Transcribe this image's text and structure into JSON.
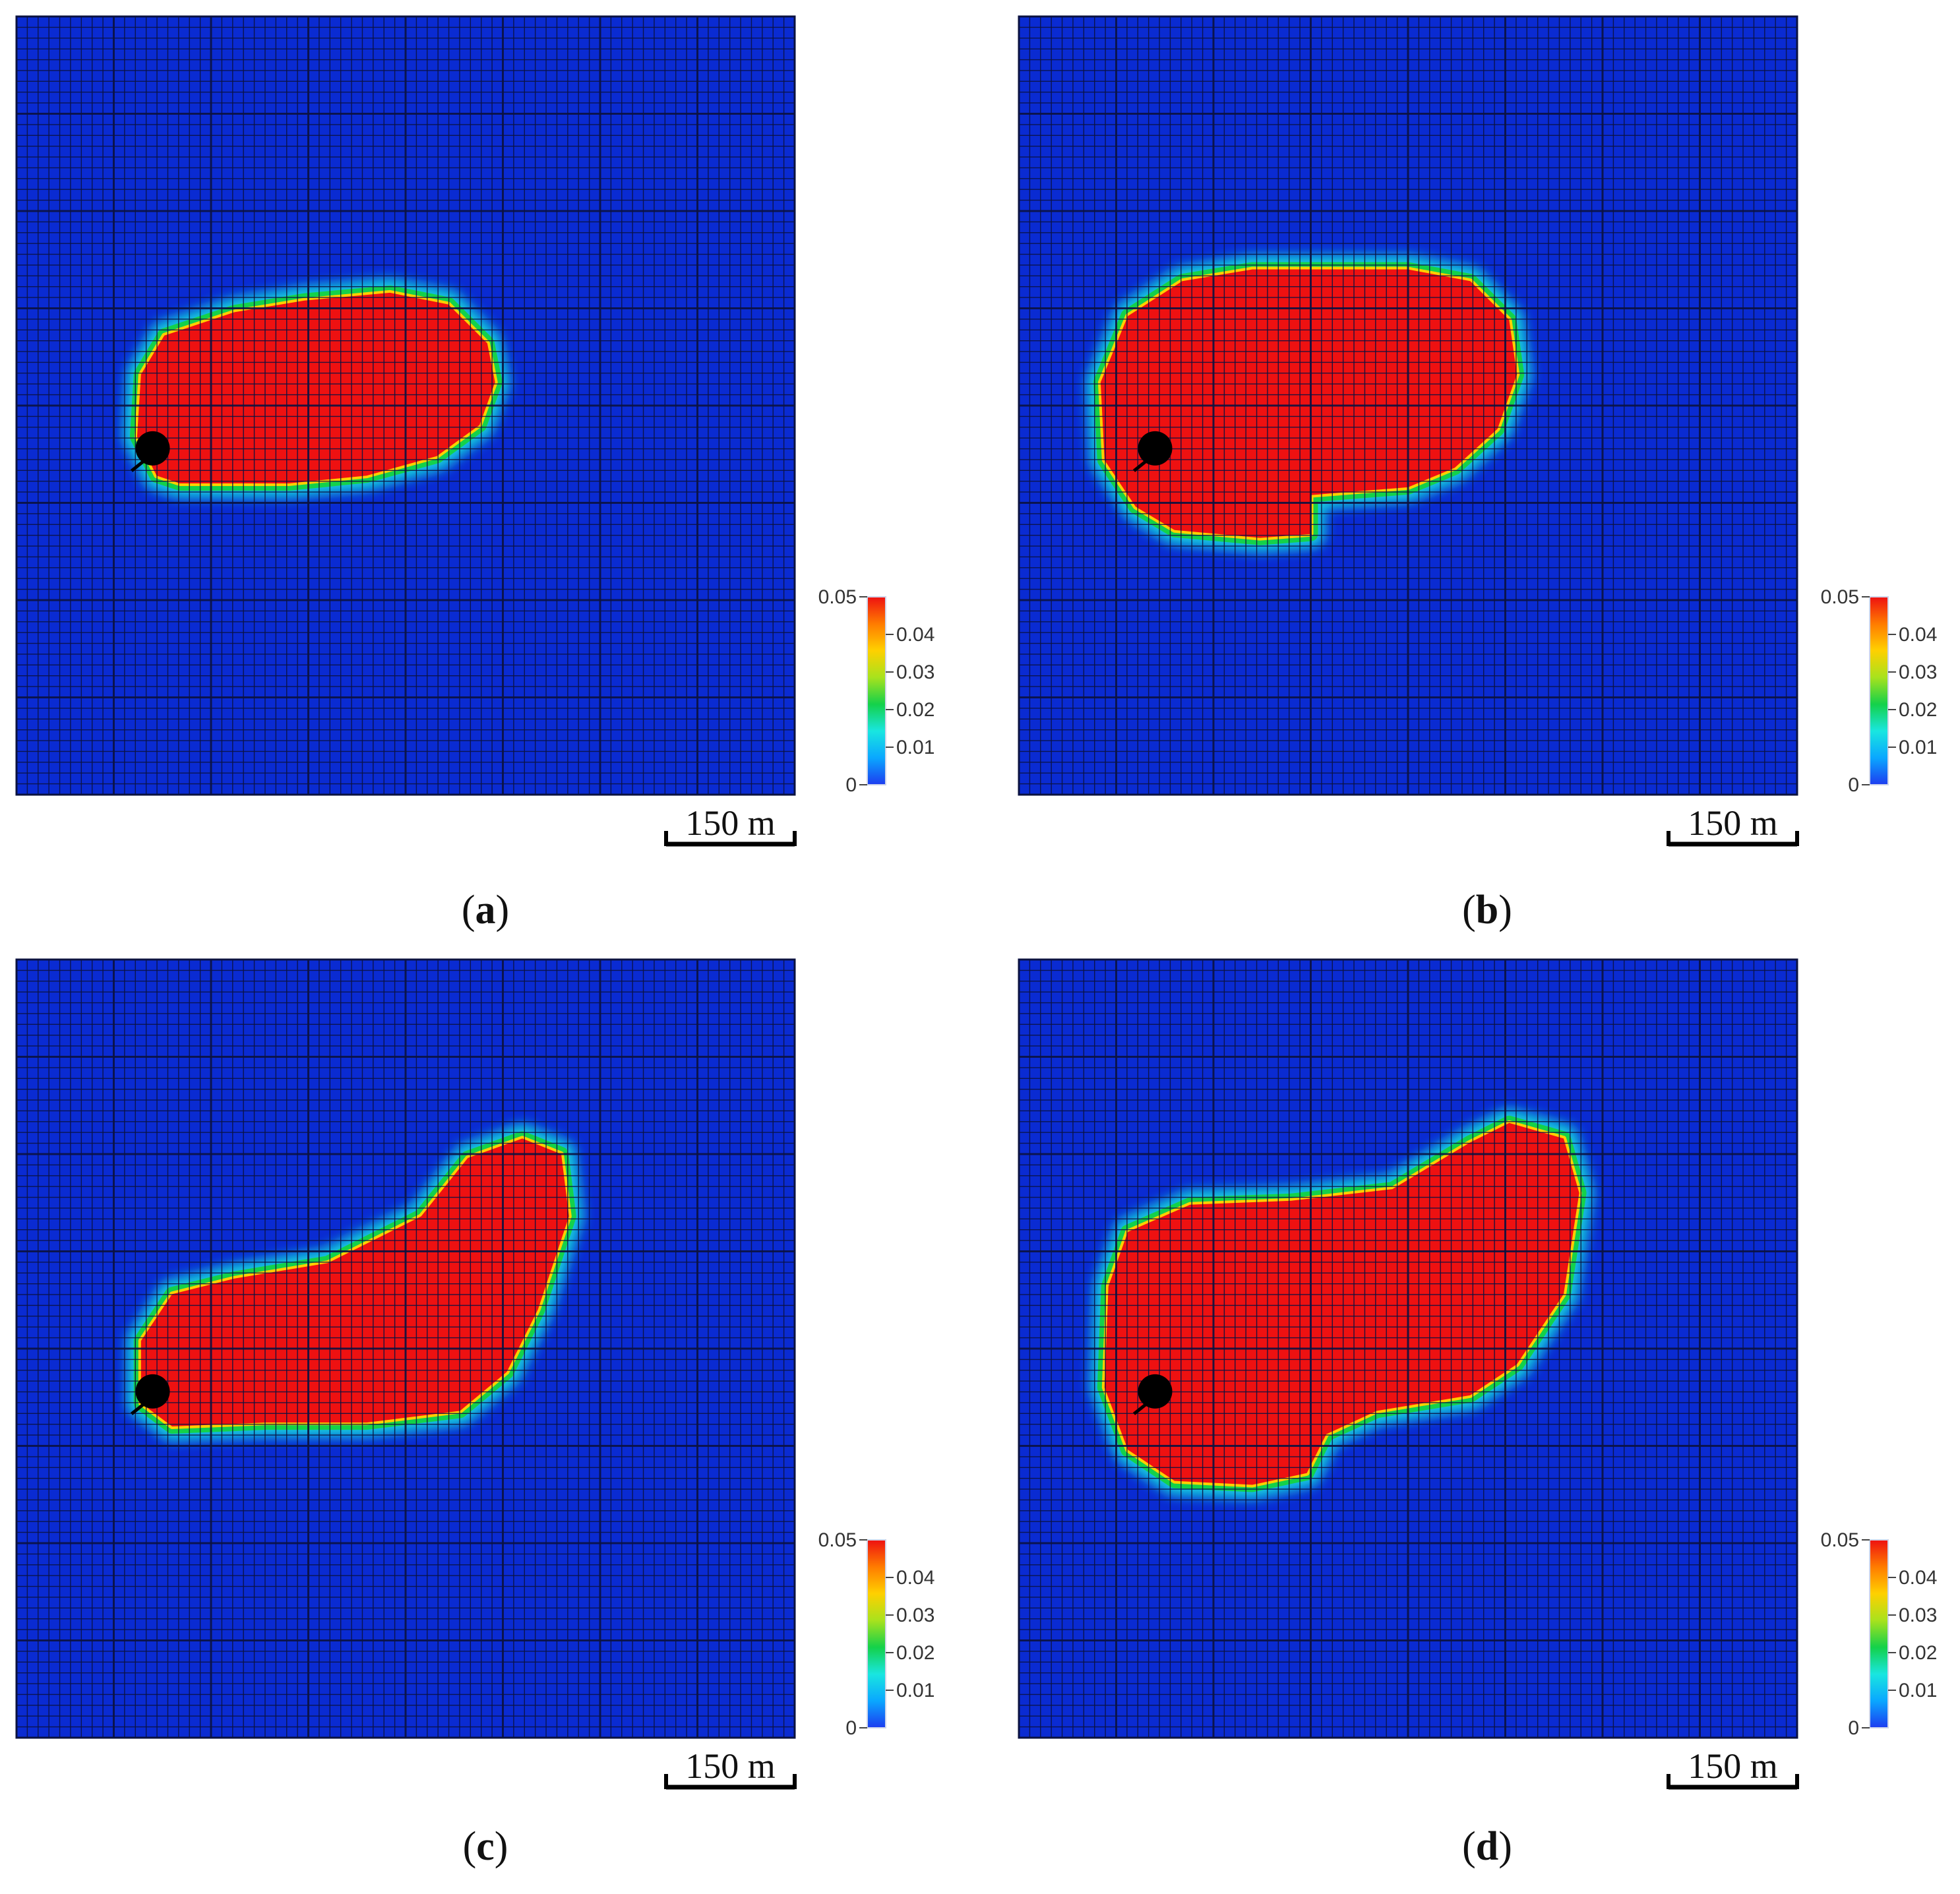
{
  "chart_data": [
    {
      "type": "heatmap",
      "panel_label": "a",
      "colorbar": {
        "min": 0,
        "max": 0.05,
        "ticks": [
          "0",
          "0.01",
          "0.02",
          "0.03",
          "0.04",
          "0.05"
        ]
      },
      "scale_bar": "150 m",
      "well_marker": {
        "x": 0.175,
        "y": 0.555
      },
      "plume_outline": [
        [
          0.16,
          0.46
        ],
        [
          0.19,
          0.41
        ],
        [
          0.28,
          0.38
        ],
        [
          0.37,
          0.365
        ],
        [
          0.48,
          0.355
        ],
        [
          0.555,
          0.37
        ],
        [
          0.605,
          0.42
        ],
        [
          0.615,
          0.47
        ],
        [
          0.595,
          0.525
        ],
        [
          0.54,
          0.565
        ],
        [
          0.45,
          0.59
        ],
        [
          0.35,
          0.6
        ],
        [
          0.21,
          0.6
        ],
        [
          0.18,
          0.59
        ],
        [
          0.155,
          0.54
        ]
      ]
    },
    {
      "type": "heatmap",
      "panel_label": "b",
      "colorbar": {
        "min": 0,
        "max": 0.05,
        "ticks": [
          "0",
          "0.01",
          "0.02",
          "0.03",
          "0.04",
          "0.05"
        ]
      },
      "scale_bar": "150 m",
      "well_marker": {
        "x": 0.175,
        "y": 0.555
      },
      "plume_outline": [
        [
          0.105,
          0.47
        ],
        [
          0.14,
          0.385
        ],
        [
          0.21,
          0.34
        ],
        [
          0.3,
          0.325
        ],
        [
          0.5,
          0.325
        ],
        [
          0.58,
          0.34
        ],
        [
          0.63,
          0.39
        ],
        [
          0.64,
          0.46
        ],
        [
          0.615,
          0.53
        ],
        [
          0.56,
          0.58
        ],
        [
          0.5,
          0.605
        ],
        [
          0.375,
          0.615
        ],
        [
          0.375,
          0.665
        ],
        [
          0.31,
          0.67
        ],
        [
          0.2,
          0.66
        ],
        [
          0.15,
          0.63
        ],
        [
          0.11,
          0.57
        ]
      ]
    },
    {
      "type": "heatmap",
      "panel_label": "c",
      "colorbar": {
        "min": 0,
        "max": 0.05,
        "ticks": [
          "0",
          "0.01",
          "0.02",
          "0.03",
          "0.04",
          "0.05"
        ]
      },
      "scale_bar": "150 m",
      "well_marker": {
        "x": 0.175,
        "y": 0.555
      },
      "plume_outline": [
        [
          0.16,
          0.49
        ],
        [
          0.2,
          0.43
        ],
        [
          0.28,
          0.41
        ],
        [
          0.4,
          0.39
        ],
        [
          0.52,
          0.33
        ],
        [
          0.58,
          0.255
        ],
        [
          0.65,
          0.23
        ],
        [
          0.7,
          0.25
        ],
        [
          0.71,
          0.33
        ],
        [
          0.67,
          0.45
        ],
        [
          0.63,
          0.53
        ],
        [
          0.57,
          0.58
        ],
        [
          0.45,
          0.595
        ],
        [
          0.32,
          0.595
        ],
        [
          0.2,
          0.6
        ],
        [
          0.16,
          0.57
        ]
      ]
    },
    {
      "type": "heatmap",
      "panel_label": "d",
      "colorbar": {
        "min": 0,
        "max": 0.05,
        "ticks": [
          "0",
          "0.01",
          "0.02",
          "0.03",
          "0.04",
          "0.05"
        ]
      },
      "scale_bar": "150 m",
      "well_marker": {
        "x": 0.175,
        "y": 0.555
      },
      "plume_outline": [
        [
          0.115,
          0.42
        ],
        [
          0.14,
          0.35
        ],
        [
          0.22,
          0.315
        ],
        [
          0.35,
          0.31
        ],
        [
          0.48,
          0.295
        ],
        [
          0.58,
          0.235
        ],
        [
          0.63,
          0.21
        ],
        [
          0.7,
          0.23
        ],
        [
          0.72,
          0.3
        ],
        [
          0.7,
          0.43
        ],
        [
          0.64,
          0.52
        ],
        [
          0.58,
          0.56
        ],
        [
          0.46,
          0.58
        ],
        [
          0.395,
          0.61
        ],
        [
          0.37,
          0.66
        ],
        [
          0.3,
          0.675
        ],
        [
          0.2,
          0.67
        ],
        [
          0.14,
          0.63
        ],
        [
          0.11,
          0.55
        ]
      ]
    }
  ],
  "colors": {
    "background_field": "#0a2bd2",
    "plume_core": "#ee1111",
    "grid_line": "#0b1240",
    "colormap": [
      "#1d3cf0",
      "#0aa7ff",
      "#19e6e0",
      "#14d14a",
      "#a8e21d",
      "#ffd000",
      "#ff7b00",
      "#ee1111"
    ]
  }
}
